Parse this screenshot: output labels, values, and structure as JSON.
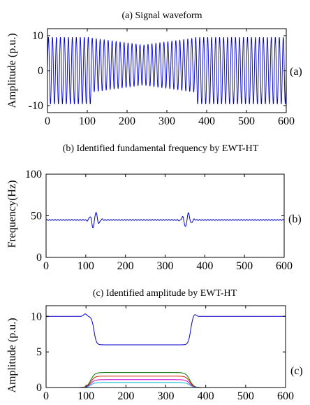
{
  "chart_data": [
    {
      "type": "line",
      "id": "a",
      "title": "(a) Signal waveform",
      "ylabel": "Amplitude (p.u.)",
      "xlabel": "",
      "side_label": "(a)",
      "xlim": [
        0,
        600
      ],
      "ylim": [
        -12,
        12
      ],
      "xticks": [
        0,
        100,
        200,
        300,
        400,
        500,
        600
      ],
      "yticks": [
        -10,
        0,
        10
      ],
      "grid": false,
      "series": [
        {
          "color": "#0000cc",
          "kind": "oscillation",
          "period": 10,
          "segments": [
            {
              "x0": 0,
              "x1": 110,
              "envelope_start": 9.6,
              "envelope_end": 9.6
            },
            {
              "x0": 110,
              "x1": 240,
              "envelope_start": 7.8,
              "envelope_end": 5.8
            },
            {
              "x0": 240,
              "x1": 370,
              "envelope_start": 5.8,
              "envelope_end": 7.8
            },
            {
              "x0": 370,
              "x1": 600,
              "envelope_start": 9.6,
              "envelope_end": 9.6
            }
          ],
          "offset_segments": [
            {
              "x0": 110,
              "x1": 370,
              "offset": 1.6
            }
          ]
        }
      ]
    },
    {
      "type": "line",
      "id": "b",
      "title": "(b) Identified fundamental frequency by EWT-HT",
      "ylabel": "Frequency(Hz)",
      "xlabel": "",
      "side_label": "(b)",
      "xlim": [
        0,
        600
      ],
      "ylim": [
        0,
        100
      ],
      "xticks": [
        0,
        100,
        200,
        300,
        400,
        500,
        600
      ],
      "yticks": [
        0,
        50,
        100
      ],
      "grid": false,
      "series": [
        {
          "color": "#0000cc",
          "kind": "frequency",
          "baseline": 45,
          "ripple": 0.6,
          "events": [
            {
              "x": 122,
              "amplitude": 10
            },
            {
              "x": 355,
              "amplitude": 9
            }
          ]
        }
      ]
    },
    {
      "type": "line",
      "id": "c",
      "title": "(c) Identified amplitude by EWT-HT",
      "ylabel": "Amplitude (p.u.)",
      "xlabel": "",
      "side_label": "(c)",
      "xlim": [
        0,
        600
      ],
      "ylim": [
        0,
        11.5
      ],
      "xticks": [
        0,
        100,
        200,
        300,
        400,
        500,
        600
      ],
      "yticks": [
        0,
        5,
        10
      ],
      "grid": false,
      "series": [
        {
          "color": "#0000cc",
          "kind": "step",
          "base": 10,
          "plateau": 6
        },
        {
          "color": "#007700",
          "kind": "bump",
          "plateau": 2.1
        },
        {
          "color": "#cc2200",
          "kind": "bump",
          "plateau": 1.6
        },
        {
          "color": "#cc00cc",
          "kind": "bump",
          "plateau": 1.1
        },
        {
          "color": "#00bbcc",
          "kind": "bump",
          "plateau": 0.7
        }
      ]
    }
  ]
}
